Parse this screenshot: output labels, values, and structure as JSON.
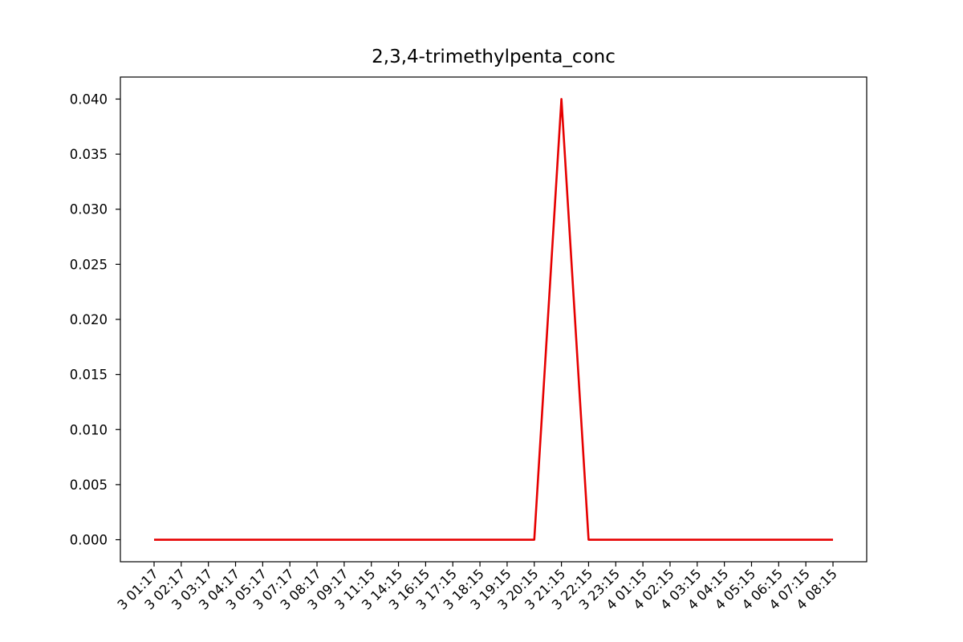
{
  "chart_data": {
    "type": "line",
    "title": "2,3,4-trimethylpenta_conc",
    "xlabel": "",
    "ylabel": "",
    "x_tick_labels": [
      "3 01:17",
      "3 02:17",
      "3 03:17",
      "3 04:17",
      "3 05:17",
      "3 07:17",
      "3 08:17",
      "3 09:17",
      "3 11:15",
      "3 14:15",
      "3 16:15",
      "3 17:15",
      "3 18:15",
      "3 19:15",
      "3 20:15",
      "3 21:15",
      "3 22:15",
      "3 23:15",
      "4 01:15",
      "4 02:15",
      "4 03:15",
      "4 04:15",
      "4 05:15",
      "4 06:15",
      "4 07:15",
      "4 08:15"
    ],
    "series": [
      {
        "color": "#e60000",
        "values": [
          0,
          0,
          0,
          0,
          0,
          0,
          0,
          0,
          0,
          0,
          0,
          0,
          0,
          0,
          0,
          0.04,
          0,
          0,
          0,
          0,
          0,
          0,
          0,
          0,
          0,
          0
        ]
      }
    ],
    "ylim": [
      -0.002,
      0.042
    ],
    "y_ticks": [
      "0.000",
      "0.005",
      "0.010",
      "0.015",
      "0.020",
      "0.025",
      "0.030",
      "0.035",
      "0.040"
    ],
    "grid": false,
    "legend": "none"
  }
}
